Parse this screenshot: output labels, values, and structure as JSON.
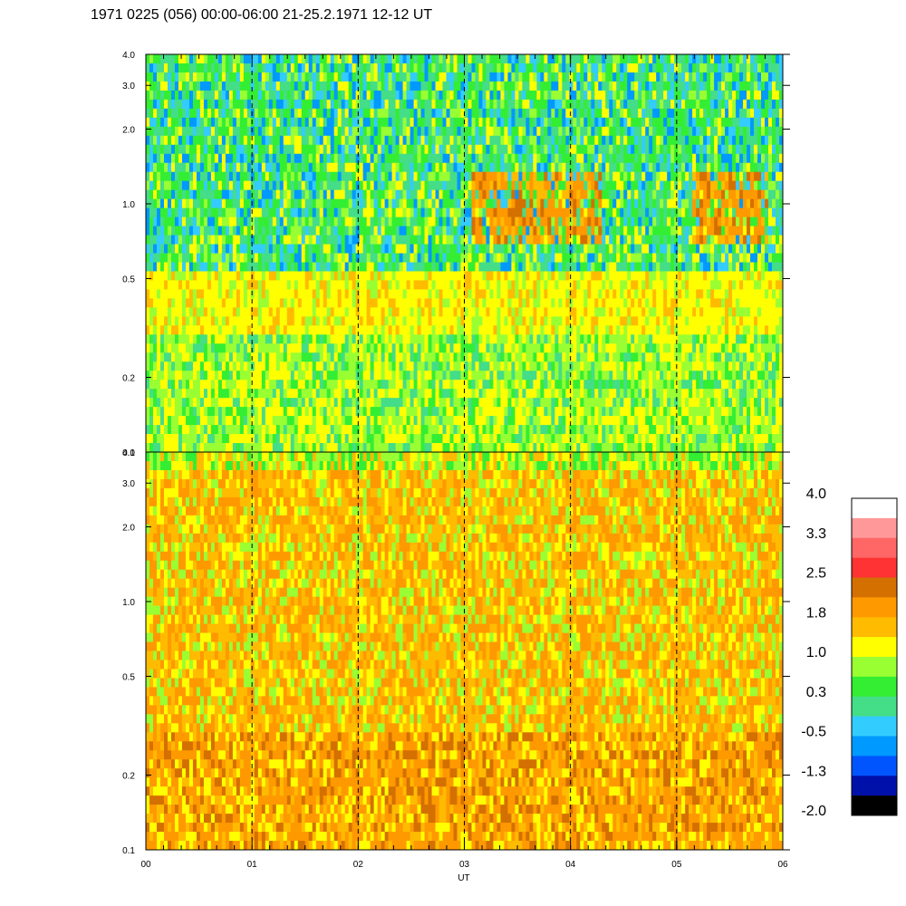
{
  "chart_data": {
    "type": "heatmap",
    "title": "1971 0225 (056) 00:00-06:00 21-25.2.1971  12-12 UT",
    "xlabel": "UT",
    "x_ticks": [
      "00",
      "01",
      "02",
      "03",
      "04",
      "05",
      "06"
    ],
    "x_range_hours": [
      0,
      6
    ],
    "y_scale": "log",
    "y_range": [
      0.1,
      4.0
    ],
    "panels": [
      {
        "name": "upper",
        "y_ticks": [
          "0.1",
          "0.2",
          "0.5",
          "1.0",
          "2.0",
          "3.0",
          "4.0"
        ],
        "y_tick_values": [
          0.1,
          0.2,
          0.5,
          1.0,
          2.0,
          3.0,
          4.0
        ],
        "dominant_levels": {
          "above_0.5": "green-cyan with blue streaks",
          "0.3_to_0.5": "yellow band",
          "below_0.3": "yellow-green",
          "feature": "orange patches 0.7-1.3 between 03:05-04:20 and 05:10-05:50"
        }
      },
      {
        "name": "lower",
        "y_ticks": [
          "0.1",
          "0.2",
          "0.5",
          "1.0",
          "2.0",
          "3.0",
          "4.0"
        ],
        "y_tick_values": [
          0.1,
          0.2,
          0.5,
          1.0,
          2.0,
          3.0,
          4.0
        ],
        "dominant_levels": {
          "above_3.5": "green-yellow",
          "0.3_to_3.5": "orange-yellow",
          "below_0.3": "orange"
        }
      }
    ],
    "hour_gridlines": true,
    "colorbar": {
      "labels": [
        "4.0",
        "3.3",
        "2.5",
        "1.8",
        "1.0",
        "0.3",
        "-0.5",
        "-1.3",
        "-2.0"
      ],
      "colors_top_to_bottom": [
        "#ffffff",
        "#ff9999",
        "#ff6666",
        "#ff3333",
        "#d47000",
        "#ff9900",
        "#ffbb00",
        "#ffff00",
        "#99ff33",
        "#33ee33",
        "#44dd88",
        "#33ccff",
        "#0099ff",
        "#0055ff",
        "#0011aa",
        "#000000"
      ],
      "placement": "right"
    },
    "series_colors": {
      "black": "#000000",
      "blue_dark": "#0011aa",
      "blue": "#0055ff",
      "sky": "#0099ff",
      "cyan": "#33ccff",
      "teal": "#44dd88",
      "green": "#33ee33",
      "lime": "#99ff33",
      "yellow": "#ffff00",
      "gold": "#ffbb00",
      "orange": "#ff9900",
      "dark_orange": "#d47000"
    }
  }
}
